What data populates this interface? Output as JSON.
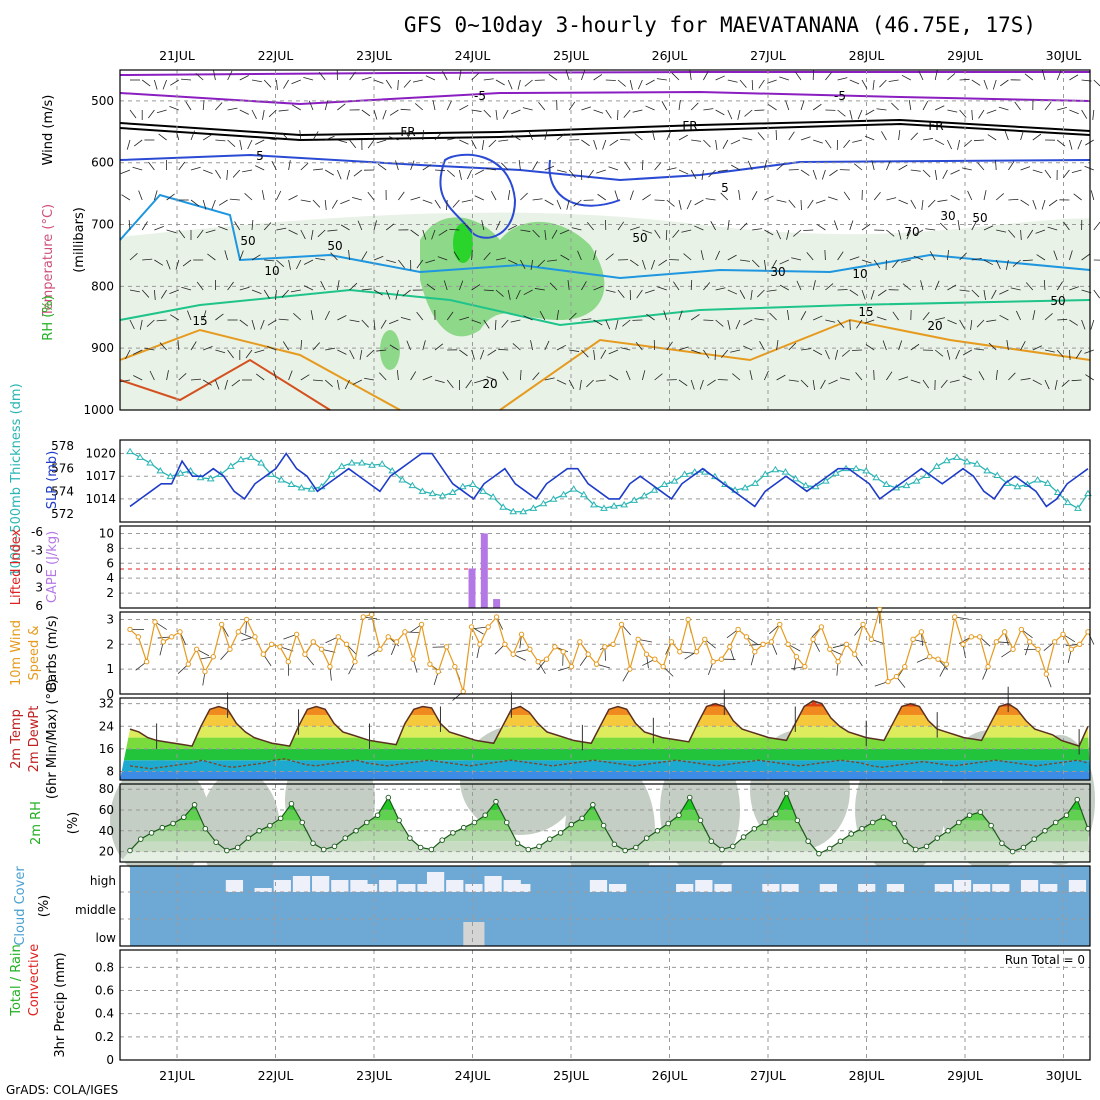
{
  "title": "GFS 0~10day 3-hourly for MAEVATANANA (46.75E, 17S)",
  "credit": "GrADS: COLA/IGES",
  "colors": {
    "temp_line": "#1e3cc8",
    "thick_line": "#2ab4b4",
    "cape_bar": "#b478e6",
    "li_line": "#e02020",
    "wind_line": "#e69a1e",
    "barb": "#333333",
    "temp_max_band": "#e04010",
    "dewpt_line": "#7a4a2a",
    "rh_green": "#22c822",
    "cloud_bg": "#6ea8d4",
    "cloud_block": "#eef0fa",
    "cloud_low_block": "#d4d4d4"
  },
  "chart_data": [
    {
      "type": "contour",
      "name": "upper-air",
      "x_dates": [
        "21JUL",
        "22JUL",
        "23JUL",
        "24JUL",
        "25JUL",
        "26JUL",
        "27JUL",
        "28JUL",
        "29JUL",
        "30JUL"
      ],
      "y_label": "(millibars)",
      "side_label": {
        "rh": "RH (%)",
        "temperature": "Temperature (°C)",
        "wind": "Wind (m/s)"
      },
      "y_ticks": [
        500,
        600,
        700,
        800,
        900,
        1000
      ],
      "ylim": [
        450,
        1000
      ],
      "isotherm_labels": [
        "-5",
        "-5",
        "FR",
        "FR",
        "FR",
        "5",
        "5",
        "10",
        "10",
        "15",
        "15",
        "20",
        "20"
      ],
      "rh_labels": [
        "50",
        "50",
        "50",
        "50",
        "30",
        "30",
        "70",
        "50"
      ]
    },
    {
      "type": "line",
      "name": "slp-thickness",
      "left_label": "1000~500mb Thickness (dm)",
      "right_label": "SLP (mb)",
      "left_ticks": [
        572,
        574,
        576,
        578
      ],
      "right_ticks": [
        1014,
        1017,
        1020
      ],
      "slp": [
        1013,
        1014,
        1015,
        1016,
        1016,
        1019,
        1017,
        1017,
        1018,
        1017,
        1015,
        1014,
        1016,
        1017,
        1018,
        1020,
        1018,
        1017,
        1015,
        1016,
        1017,
        1018,
        1017,
        1016,
        1015,
        1017,
        1018,
        1019,
        1020,
        1020,
        1018,
        1016,
        1015,
        1014,
        1016,
        1017,
        1018,
        1016,
        1015,
        1014,
        1016,
        1017,
        1018,
        1018,
        1016,
        1015,
        1014,
        1014,
        1016,
        1017,
        1016,
        1015,
        1014,
        1016,
        1017,
        1018,
        1017,
        1016,
        1015,
        1014,
        1013,
        1015,
        1016,
        1017,
        1016,
        1015,
        1016,
        1017,
        1018,
        1018,
        1017,
        1016,
        1014,
        1015,
        1016,
        1017,
        1018,
        1017,
        1016,
        1017,
        1018,
        1017,
        1015,
        1014,
        1016,
        1017,
        1016,
        1015,
        1013,
        1014,
        1016,
        1017,
        1018
      ],
      "thickness": [
        577.5,
        577,
        576.5,
        575.8,
        575.3,
        575.6,
        575.8,
        575.2,
        575.1,
        575.5,
        576.2,
        576.8,
        577,
        576.5,
        575.5,
        575,
        574.6,
        574.3,
        574.2,
        574.4,
        575.5,
        576.2,
        576.5,
        576.5,
        576.3,
        576.4,
        575.8,
        575,
        574.5,
        574,
        573.8,
        573.6,
        573.9,
        574.4,
        574.6,
        574,
        573.5,
        572.6,
        572.2,
        572.2,
        572.5,
        572.9,
        573.3,
        573.7,
        574.2,
        573.7,
        572.8,
        572.5,
        572.7,
        572.8,
        573.2,
        573.6,
        574.1,
        574.6,
        574.9,
        575.5,
        575.7,
        575.7,
        575.3,
        574.6,
        574.1,
        574.3,
        574.7,
        575.5,
        575.9,
        575.7,
        575.1,
        574.5,
        574.4,
        574.9,
        575.6,
        576,
        576,
        575.8,
        575.2,
        574.6,
        574.3,
        574.5,
        574.9,
        575.4,
        576.2,
        576.7,
        577,
        576.6,
        576.4,
        575.8,
        575.4,
        574.7,
        574.4,
        574.6,
        575,
        574.7,
        573.9,
        573,
        572.5,
        573.8
      ]
    },
    {
      "type": "bar",
      "name": "cape-li",
      "left_label": "Lifted Index",
      "right_label": "CAPE (J/kg)",
      "li_ticks": [
        -6,
        -3,
        0,
        3,
        6
      ],
      "cape_ticks": [
        2,
        4,
        6,
        8,
        10
      ],
      "li_zero_line": 0,
      "cape_bars": [
        {
          "date": "24JUL",
          "hour": 0,
          "value": 5.3
        },
        {
          "date": "24JUL",
          "hour": 3,
          "value": 10
        },
        {
          "date": "24JUL",
          "hour": 6,
          "value": 1.2
        }
      ]
    },
    {
      "type": "line",
      "name": "wind10m",
      "label": "10m Wind Speed & Barbs (m/s)",
      "y_ticks": [
        0,
        1,
        2,
        3
      ],
      "ylim": [
        0,
        3.3
      ],
      "values": [
        2.6,
        2.3,
        1.3,
        2.9,
        2.1,
        2.3,
        2.5,
        1.2,
        1.8,
        0.9,
        1.5,
        2.8,
        1.8,
        2.5,
        3.0,
        2.3,
        1.6,
        2.0,
        1.9,
        1.3,
        2.4,
        1.6,
        2.1,
        1.8,
        1.1,
        2.3,
        2.0,
        1.3,
        3.1,
        3.2,
        1.8,
        2.3,
        2.1,
        2.5,
        1.4,
        2.8,
        1.2,
        0.9,
        1.9,
        1.1,
        0.1,
        2.7,
        2.0,
        2.7,
        3.1,
        2.0,
        1.6,
        2.4,
        1.8,
        1.3,
        1.4,
        1.9,
        1.7,
        1.1,
        2.1,
        1.6,
        1.2,
        1.9,
        2.0,
        2.8,
        1.0,
        2.2,
        1.6,
        1.4,
        1.1,
        2.1,
        1.7,
        3.0,
        1.7,
        2.2,
        1.3,
        1.4,
        1.9,
        2.6,
        2.3,
        1.7,
        2.0,
        2.1,
        2.8,
        2.0,
        1.5,
        1.1,
        2.2,
        2.7,
        1.8,
        1.3,
        2.0,
        1.6,
        2.8,
        2.2,
        3.4,
        0.5,
        0.7,
        1.1,
        2.2,
        2.5,
        1.5,
        1.4,
        1.2,
        3.1,
        2.0,
        2.3,
        2.3,
        1.1,
        2.1,
        2.5,
        1.8,
        2.6,
        2.1,
        1.8,
        0.8,
        2.1,
        2.4,
        1.8,
        2.0,
        2.5
      ]
    },
    {
      "type": "area",
      "name": "temp2m",
      "label": "2m Temp 2m DewPt (6hr Min/Max) (°C)",
      "y_ticks": [
        8,
        16,
        24,
        32
      ],
      "ylim": [
        5,
        34
      ],
      "temp": [
        23,
        22,
        20,
        19,
        18.5,
        18,
        17.5,
        17,
        24,
        30,
        31,
        30,
        25,
        22,
        20,
        19,
        18,
        17.5,
        17,
        24,
        30,
        31,
        30,
        25,
        22,
        21,
        20,
        19,
        18.5,
        18,
        17.5,
        25,
        30,
        31,
        30.5,
        25,
        22,
        21,
        20,
        19,
        18.5,
        18,
        24,
        30,
        31,
        29,
        25,
        22,
        21,
        20,
        19,
        18.5,
        18,
        24,
        30,
        31,
        30,
        25,
        22,
        21,
        20,
        19.5,
        19,
        18.5,
        25,
        31,
        32,
        31,
        26,
        23,
        22,
        21,
        20,
        19.5,
        19,
        25,
        31,
        33,
        32,
        27,
        24,
        22,
        21,
        20,
        19.5,
        19,
        25,
        31,
        32,
        31,
        26,
        23,
        22,
        21,
        20,
        19.5,
        19,
        25,
        31,
        32,
        30,
        26,
        23,
        22,
        21,
        19,
        18,
        17,
        24
      ],
      "dewpt": [
        10,
        9.5,
        9,
        9.5,
        10,
        10.5,
        11,
        12,
        11,
        10,
        9.5,
        10,
        10.5,
        11,
        12,
        12.5,
        11.5,
        10.5,
        10,
        10.5,
        11,
        11.5,
        12,
        11,
        10.5,
        10,
        10.5,
        11,
        11.5,
        12,
        11.5,
        11,
        10.5,
        10,
        10.5,
        11,
        11.5,
        12,
        11.5,
        11,
        10.5,
        10,
        10.5,
        11,
        11.5,
        12,
        11.5,
        11,
        10.5,
        10,
        10.5,
        11,
        11.5,
        12,
        11.5,
        11,
        10.5,
        10,
        10.5,
        11,
        11.5,
        12,
        11.5,
        11,
        10.5,
        10,
        10.5,
        11,
        11.5,
        12,
        11.5,
        11,
        10,
        9.5,
        10,
        10.5,
        11,
        11.5,
        11,
        10.5,
        10,
        10.5,
        11,
        11.5,
        12,
        11.5,
        11,
        10.5,
        10,
        10.5,
        11,
        11.5,
        12,
        11
      ]
    },
    {
      "type": "area",
      "name": "rh2m",
      "label": "2m RH (%)",
      "y_ticks": [
        20,
        40,
        60,
        80
      ],
      "ylim": [
        10,
        85
      ],
      "values": [
        21,
        32,
        38,
        43,
        47,
        53,
        65,
        42,
        29,
        21,
        24,
        33,
        40,
        45,
        52,
        66,
        48,
        28,
        22,
        25,
        33,
        40,
        48,
        55,
        72,
        50,
        33,
        24,
        22,
        31,
        38,
        43,
        48,
        55,
        68,
        48,
        28,
        22,
        25,
        32,
        38,
        46,
        52,
        65,
        45,
        27,
        21,
        24,
        33,
        40,
        47,
        55,
        72,
        50,
        30,
        22,
        25,
        34,
        42,
        48,
        56,
        76,
        50,
        30,
        18,
        23,
        30,
        37,
        42,
        48,
        53,
        47,
        30,
        22,
        25,
        33,
        40,
        48,
        55,
        58,
        45,
        28,
        20,
        24,
        32,
        40,
        48,
        55,
        70,
        42
      ]
    },
    {
      "type": "bar",
      "name": "cloud-cover",
      "label": "Cloud Cover (%)",
      "levels": [
        "high",
        "middle",
        "low"
      ],
      "high_blocks": [
        [
          10,
          1.5
        ],
        [
          13,
          0.5
        ],
        [
          15,
          1.5
        ],
        [
          17,
          2
        ],
        [
          19,
          2
        ],
        [
          21,
          1.5
        ],
        [
          23,
          1.5
        ],
        [
          24,
          1
        ],
        [
          26,
          1.5
        ],
        [
          28,
          1
        ],
        [
          30,
          1
        ],
        [
          31,
          2.5
        ],
        [
          33,
          1.5
        ],
        [
          35,
          1
        ],
        [
          37,
          2
        ],
        [
          39,
          1.5
        ],
        [
          40,
          1
        ],
        [
          48,
          1.5
        ],
        [
          50,
          1
        ],
        [
          57,
          1
        ],
        [
          59,
          1.5
        ],
        [
          61,
          1
        ],
        [
          66,
          1
        ],
        [
          68,
          1
        ],
        [
          72,
          1
        ],
        [
          76,
          1
        ],
        [
          79,
          1
        ],
        [
          84,
          1
        ],
        [
          86,
          1.5
        ],
        [
          88,
          1
        ],
        [
          90,
          1
        ],
        [
          93,
          1.5
        ],
        [
          95,
          1
        ],
        [
          98,
          1.5
        ]
      ],
      "low_blocks": [
        [
          35,
          2
        ]
      ]
    },
    {
      "type": "bar",
      "name": "precip",
      "label": "3hr Precip (mm)",
      "side_label": {
        "total": "Total / Rain",
        "conv": "Convective"
      },
      "y_ticks": [
        0,
        0.2,
        0.4,
        0.6,
        0.8
      ],
      "ylim": [
        0,
        0.95
      ],
      "run_total_label": "Run Total = 0",
      "values": []
    }
  ]
}
